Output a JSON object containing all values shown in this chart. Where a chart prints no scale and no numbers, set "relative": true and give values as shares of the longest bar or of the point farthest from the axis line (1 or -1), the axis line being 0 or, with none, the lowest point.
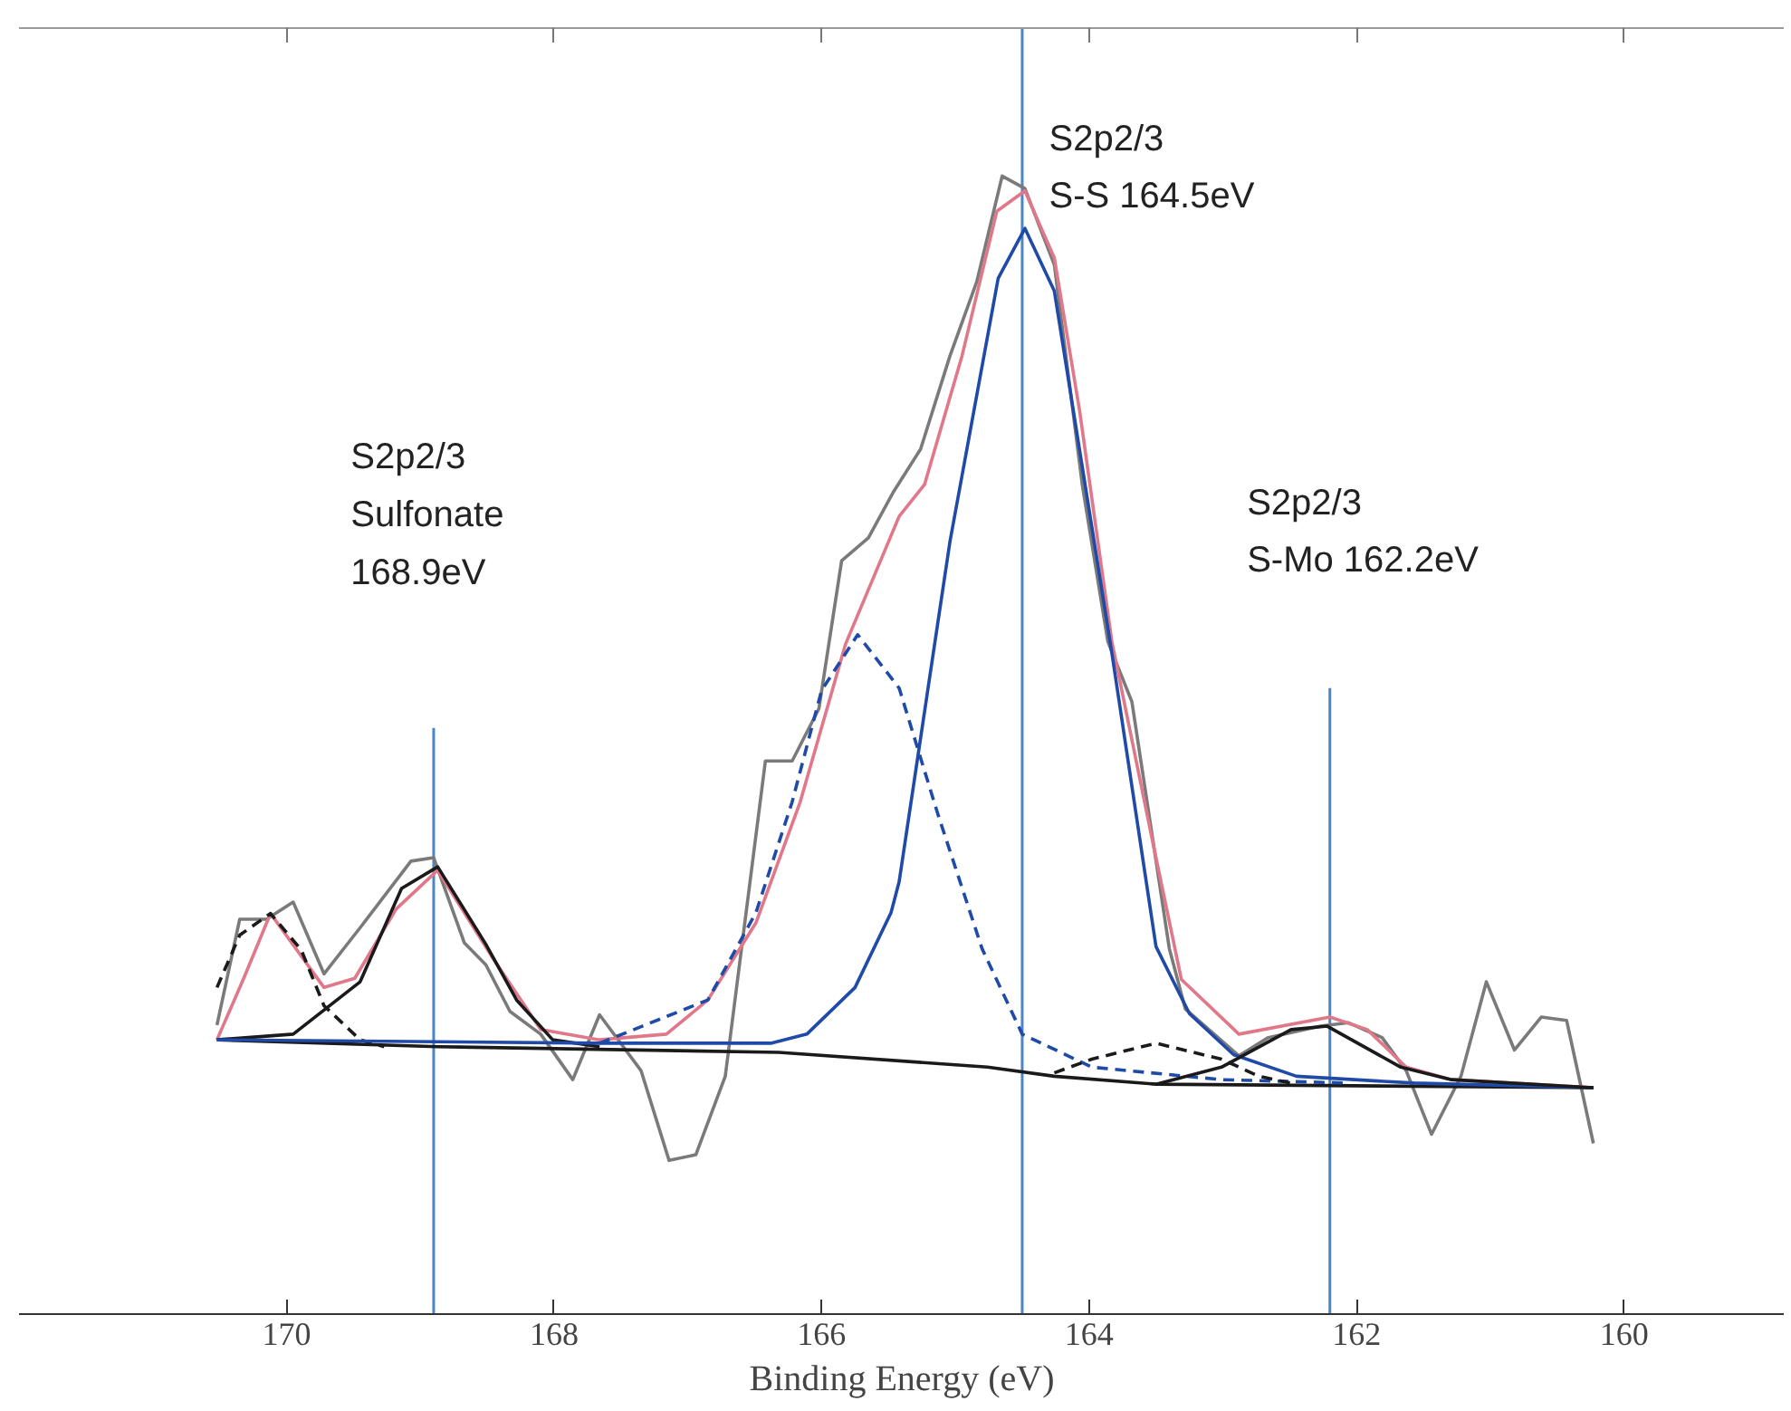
{
  "chart_data": {
    "type": "line",
    "relative": true,
    "xlabel": "Binding Energy (eV)",
    "xlim": [
      172,
      158.8
    ],
    "xticks": [
      170,
      168,
      166,
      164,
      162,
      160
    ],
    "grid": false,
    "series": [
      {
        "color": "#7a7a7a",
        "line_style": "solid",
        "x": [
          170.52,
          170.35,
          170.15,
          169.95,
          169.72,
          169.44,
          169.07,
          168.9,
          168.67,
          168.51,
          168.33,
          168.1,
          167.86,
          167.66,
          167.35,
          167.14,
          166.94,
          166.72,
          166.42,
          166.22,
          166.02,
          165.85,
          165.65,
          165.46,
          165.26,
          165.04,
          164.84,
          164.65,
          164.48,
          164.26,
          164.05,
          163.86,
          163.68,
          163.4,
          163.28,
          162.88,
          162.66,
          162.27,
          162.06,
          161.81,
          161.63,
          161.44,
          161.22,
          161.03,
          160.82,
          160.62,
          160.43,
          160.23
        ],
        "values": [
          0.254,
          0.347,
          0.347,
          0.362,
          0.299,
          0.341,
          0.398,
          0.401,
          0.326,
          0.307,
          0.266,
          0.246,
          0.206,
          0.263,
          0.214,
          0.135,
          0.14,
          0.209,
          0.486,
          0.486,
          0.532,
          0.662,
          0.682,
          0.723,
          0.76,
          0.842,
          0.907,
          1.0,
          0.989,
          0.922,
          0.728,
          0.591,
          0.538,
          0.321,
          0.268,
          0.227,
          0.243,
          0.253,
          0.256,
          0.243,
          0.214,
          0.158,
          0.209,
          0.292,
          0.232,
          0.261,
          0.258,
          0.15
        ]
      },
      {
        "color": "#e0788a",
        "line_style": "solid",
        "x": [
          170.52,
          170.32,
          170.12,
          169.72,
          169.49,
          169.18,
          168.87,
          168.47,
          168.1,
          167.66,
          167.16,
          166.85,
          166.49,
          166.16,
          165.82,
          165.42,
          165.23,
          164.95,
          164.69,
          164.48,
          164.26,
          164.07,
          163.83,
          163.53,
          163.31,
          162.88,
          162.2,
          161.92,
          161.63,
          161.29,
          160.23
        ],
        "values": [
          0.241,
          0.295,
          0.352,
          0.287,
          0.295,
          0.356,
          0.39,
          0.315,
          0.25,
          0.241,
          0.246,
          0.276,
          0.344,
          0.45,
          0.589,
          0.701,
          0.729,
          0.842,
          0.969,
          0.987,
          0.928,
          0.793,
          0.591,
          0.418,
          0.294,
          0.246,
          0.261,
          0.25,
          0.217,
          0.206,
          0.199
        ]
      },
      {
        "color": "#1a1a1a",
        "line_style": "solid",
        "x": [
          170.52,
          168.87,
          166.32,
          164.76,
          164.26,
          163.5,
          160.23
        ],
        "values": [
          0.241,
          0.235,
          0.23,
          0.217,
          0.209,
          0.202,
          0.199
        ]
      },
      {
        "color": "#1a1a1a",
        "line_style": "solid",
        "x": [
          170.52,
          169.95,
          169.45,
          169.14,
          168.87,
          168.51,
          168.28,
          168.01,
          167.66
        ],
        "values": [
          0.241,
          0.246,
          0.292,
          0.374,
          0.393,
          0.325,
          0.276,
          0.241,
          0.235
        ]
      },
      {
        "color": "#1a1a1a",
        "line_style": "dashed",
        "x": [
          170.52,
          170.35,
          170.12,
          169.89,
          169.72,
          169.45,
          169.27
        ],
        "values": [
          0.287,
          0.333,
          0.352,
          0.32,
          0.271,
          0.241,
          0.235
        ]
      },
      {
        "color": "#1f4aa8",
        "line_style": "solid",
        "x": [
          170.52,
          167.66,
          166.38,
          166.11,
          165.75,
          165.48,
          165.42,
          165.04,
          164.68,
          164.48,
          164.26,
          163.83,
          163.5,
          163.25,
          162.92,
          162.45,
          161.57,
          160.23
        ],
        "values": [
          0.241,
          0.238,
          0.238,
          0.246,
          0.287,
          0.353,
          0.38,
          0.679,
          0.91,
          0.954,
          0.899,
          0.581,
          0.323,
          0.264,
          0.228,
          0.209,
          0.203,
          0.199
        ]
      },
      {
        "color": "#1f4aa8",
        "line_style": "dashed",
        "x": [
          167.66,
          166.85,
          166.49,
          166.22,
          166.0,
          165.73,
          165.42,
          165.13,
          164.8,
          164.5,
          163.98,
          163.01,
          162.06
        ],
        "values": [
          0.238,
          0.276,
          0.353,
          0.45,
          0.548,
          0.597,
          0.55,
          0.439,
          0.321,
          0.246,
          0.217,
          0.206,
          0.203
        ]
      },
      {
        "color": "#1a1a1a",
        "line_style": "dashed",
        "x": [
          164.26,
          163.98,
          163.5,
          163.01,
          162.73,
          162.45
        ],
        "values": [
          0.212,
          0.224,
          0.238,
          0.224,
          0.209,
          0.202
        ]
      },
      {
        "color": "#1a1a1a",
        "line_style": "solid",
        "x": [
          163.5,
          163.01,
          162.49,
          162.22,
          161.67,
          161.29,
          160.23
        ],
        "values": [
          0.202,
          0.217,
          0.25,
          0.253,
          0.217,
          0.206,
          0.199
        ]
      }
    ],
    "ref_lines": [
      {
        "axis": "x",
        "value": 168.9,
        "color": "#4a86c8"
      },
      {
        "axis": "x",
        "value": 164.5,
        "color": "#4a86c8"
      },
      {
        "axis": "x",
        "value": 162.2,
        "color": "#4a86c8"
      }
    ],
    "annotations": [
      "S2p2/3\nSulfonate\n168.9eV",
      "S2p2/3\nS-S  164.5eV",
      "S2p2/3\nS-Mo     162.2eV"
    ]
  }
}
